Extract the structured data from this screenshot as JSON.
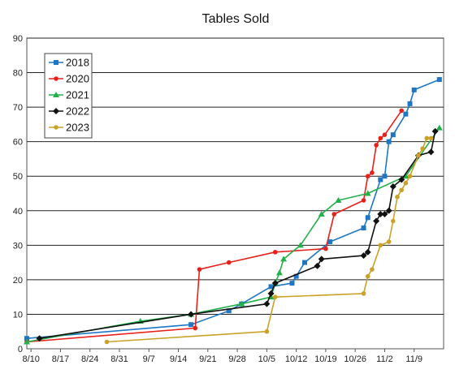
{
  "chart_data": {
    "type": "line",
    "title": "Tables Sold",
    "ylim": [
      0,
      90
    ],
    "yticks": [
      0,
      10,
      20,
      30,
      40,
      50,
      60,
      70,
      80,
      90
    ],
    "xlim": [
      "08-09",
      "11-16"
    ],
    "xticks": [
      "8/10",
      "8/17",
      "8/24",
      "8/31",
      "9/7",
      "9/14",
      "9/21",
      "9/28",
      "10/5",
      "10/12",
      "10/19",
      "10/26",
      "11/2",
      "11/9"
    ],
    "grid": true,
    "legend_position": "top-left",
    "series": [
      {
        "name": "2018",
        "color": "#1f77c4",
        "marker": "square",
        "x": [
          "08-09",
          "09-17",
          "09-26",
          "09-29",
          "10-06",
          "10-11",
          "10-12",
          "10-14",
          "10-20",
          "10-28",
          "10-29",
          "11-01",
          "11-02",
          "11-03",
          "11-04",
          "11-07",
          "11-08",
          "11-09",
          "11-15"
        ],
        "y": [
          3,
          7,
          11,
          13,
          18,
          19,
          21,
          25,
          31,
          35,
          38,
          49,
          50,
          60,
          62,
          68,
          71,
          75,
          78
        ]
      },
      {
        "name": "2020",
        "color": "#e8201a",
        "marker": "circle",
        "x": [
          "08-09",
          "09-18",
          "09-19",
          "09-26",
          "10-07",
          "10-19",
          "10-21",
          "10-28",
          "10-29",
          "10-30",
          "10-31",
          "11-01",
          "11-02",
          "11-06"
        ],
        "y": [
          2,
          6,
          23,
          25,
          28,
          29,
          39,
          43,
          50,
          51,
          59,
          61,
          62,
          69
        ]
      },
      {
        "name": "2021",
        "color": "#22b04a",
        "marker": "triangle",
        "x": [
          "08-09",
          "09-05",
          "09-17",
          "09-29",
          "10-06",
          "10-07",
          "10-08",
          "10-09",
          "10-13",
          "10-18",
          "10-22",
          "10-29",
          "11-07",
          "11-15"
        ],
        "y": [
          2,
          8,
          10,
          13,
          15,
          19,
          22,
          26,
          30,
          39,
          43,
          45,
          50,
          64
        ]
      },
      {
        "name": "2022",
        "color": "#111111",
        "marker": "diamond",
        "x": [
          "08-12",
          "09-17",
          "10-05",
          "10-06",
          "10-07",
          "10-17",
          "10-18",
          "10-28",
          "10-29",
          "10-31",
          "11-01",
          "11-02",
          "11-03",
          "11-04",
          "11-06",
          "11-10",
          "11-13",
          "11-14"
        ],
        "y": [
          3,
          10,
          13,
          16,
          19,
          24,
          26,
          27,
          28,
          37,
          39,
          39,
          40,
          47,
          49,
          56,
          57,
          63
        ]
      },
      {
        "name": "2023",
        "color": "#c9a227",
        "marker": "circle",
        "x": [
          "08-28",
          "10-05",
          "10-07",
          "10-28",
          "10-29",
          "10-30",
          "11-01",
          "11-03",
          "11-04",
          "11-05",
          "11-06",
          "11-07",
          "11-08",
          "11-10",
          "11-11",
          "11-12",
          "11-13"
        ],
        "y": [
          2,
          5,
          15,
          16,
          21,
          23,
          30,
          31,
          37,
          44,
          46,
          48,
          50,
          56,
          58,
          61,
          61
        ]
      }
    ]
  }
}
